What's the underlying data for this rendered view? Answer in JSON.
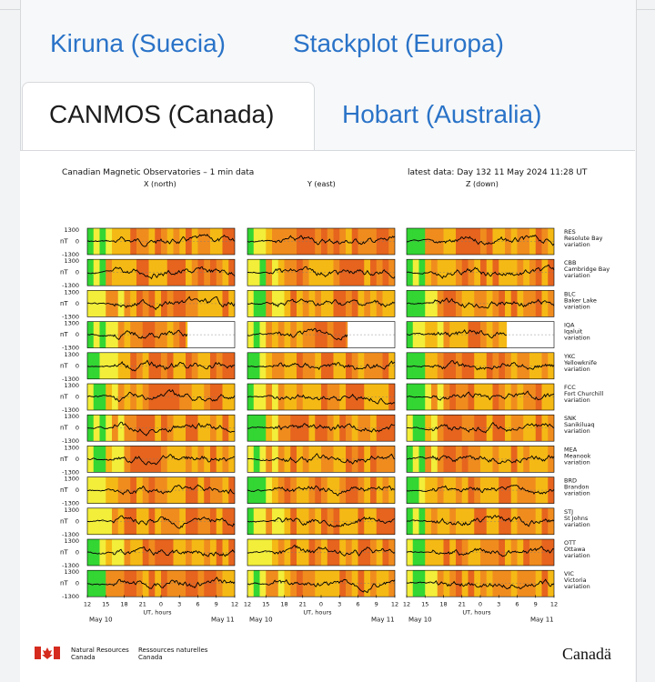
{
  "tabs": [
    {
      "label": "Kiruna (Suecia)",
      "active": false
    },
    {
      "label": "Stackplot (Europa)",
      "active": false
    },
    {
      "label": "CANMOS (Canada)",
      "active": true
    },
    {
      "label": "Hobart (Australia)",
      "active": false
    }
  ],
  "figure": {
    "title": "Canadian Magnetic Observatories – 1 min data",
    "latest": "latest data: Day 132    11 May 2024 11:28 UT",
    "columns": [
      "X (north)",
      "Y (east)",
      "Z (down)"
    ],
    "y_unit": "nT",
    "y_max_label": "1300",
    "y_zero_label": "0",
    "y_min_label": "-1300",
    "x_ticks": [
      "12",
      "15",
      "18",
      "21",
      "0",
      "3",
      "6",
      "9",
      "12"
    ],
    "x_label": "UT, hours",
    "date_start": "May 10",
    "date_end": "May 11",
    "stations": [
      {
        "code": "RES",
        "name": "Resolute Bay",
        "suffix": "variation"
      },
      {
        "code": "CBB",
        "name": "Cambridge Bay",
        "suffix": "variation"
      },
      {
        "code": "BLC",
        "name": "Baker Lake",
        "suffix": "variation"
      },
      {
        "code": "IQA",
        "name": "Iqaluit",
        "suffix": "variation"
      },
      {
        "code": "YKC",
        "name": "Yellowknife",
        "suffix": "variation"
      },
      {
        "code": "FCC",
        "name": "Fort Churchill",
        "suffix": "variation"
      },
      {
        "code": "SNK",
        "name": "Sanikiluaq",
        "suffix": "variation"
      },
      {
        "code": "MEA",
        "name": "Meanook",
        "suffix": "variation"
      },
      {
        "code": "BRD",
        "name": "Brandon",
        "suffix": "variation"
      },
      {
        "code": "STJ",
        "name": "St Johns",
        "suffix": "variation"
      },
      {
        "code": "OTT",
        "name": "Ottawa",
        "suffix": "variation"
      },
      {
        "code": "VIC",
        "name": "Victoria",
        "suffix": "variation"
      }
    ],
    "data_cutoff_fraction": {
      "IQA": 0.68
    },
    "activity_colors": {
      "quiet": "#33d633",
      "unsettled": "#f2ee3a",
      "active": "#f5b915",
      "storm": "#f08c1e",
      "severe": "#e6641e"
    }
  },
  "footer": {
    "dept_en_1": "Natural Resources",
    "dept_en_2": "Canada",
    "dept_fr_1": "Ressources naturelles",
    "dept_fr_2": "Canada",
    "wordmark": "Canadä"
  }
}
